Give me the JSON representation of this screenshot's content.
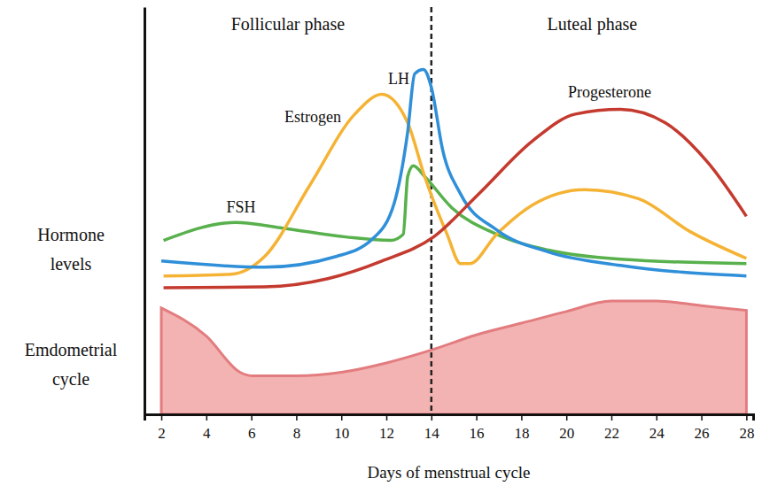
{
  "chart_data": [
    {
      "type": "line",
      "y_label": "Hormone levels",
      "phases": [
        {
          "label": "Follicular phase",
          "start": 1.25,
          "end": 14
        },
        {
          "label": "Luteal phase",
          "start": 14,
          "end": 28.3
        }
      ],
      "xlim": [
        1.25,
        28.3
      ],
      "ylim": [
        0,
        100
      ],
      "yticks": [],
      "tick_labels": false,
      "series": [
        {
          "name": "FSH",
          "color": "#58b14c",
          "x": [
            2.1,
            5.3,
            7.4,
            10.2,
            12.2,
            12.75,
            12.95,
            13.2,
            13.7,
            14.9,
            16.9,
            19.2,
            22.4,
            28
          ],
          "values": [
            20.6,
            26.7,
            24.8,
            21.8,
            20.6,
            22.7,
            42.4,
            46,
            42.4,
            31.8,
            22.7,
            17.3,
            14.2,
            12.7
          ]
        },
        {
          "name": "Estrogen",
          "color": "#f5b335",
          "x": [
            2.1,
            5.1,
            6.6,
            8.6,
            10.6,
            11.8,
            12.95,
            13.7,
            14.7,
            15.3,
            15.7,
            16.9,
            18.5,
            20.8,
            23.2,
            25.5,
            28
          ],
          "values": [
            8.5,
            9.1,
            15.2,
            39.4,
            63.6,
            70.3,
            60.6,
            42.4,
            22.7,
            12.7,
            12.7,
            22.7,
            32.7,
            37.9,
            34.8,
            23.6,
            14.5
          ]
        },
        {
          "name": "LH",
          "color": "#2f8fd8",
          "x": [
            2,
            6.6,
            9.8,
            11.4,
            12.35,
            12.95,
            13.26,
            13.65,
            14.0,
            14.5,
            15.3,
            16.9,
            19.2,
            22.4,
            28
          ],
          "values": [
            13.6,
            11.5,
            15.2,
            21.2,
            33.3,
            57.6,
            77.3,
            78.8,
            72.7,
            51.5,
            36.4,
            24.2,
            16.7,
            12.1,
            8.5
          ]
        },
        {
          "name": "Progesterone",
          "color": "#c43a2f",
          "x": [
            2.1,
            6.6,
            9.4,
            11.8,
            14.1,
            16.1,
            18.5,
            20.4,
            22.4,
            24.4,
            26.3,
            28
          ],
          "values": [
            4.5,
            4.8,
            7.6,
            13.6,
            21.8,
            36.4,
            54.5,
            63.6,
            65.2,
            60.6,
            47,
            28.8
          ]
        }
      ]
    },
    {
      "type": "area",
      "y_label": "Emdometrial cycle",
      "x_label": "Days of menstrual cycle",
      "xlim": [
        1.25,
        28.3
      ],
      "ylim": [
        0,
        10
      ],
      "xticks": [
        2,
        4,
        6,
        8,
        10,
        12,
        14,
        16,
        18,
        20,
        22,
        24,
        26,
        28
      ],
      "yticks": [],
      "tick_labels": "x",
      "color": "#f4b3b3",
      "x": [
        2,
        4,
        5.5,
        6,
        8,
        10,
        12,
        14,
        16,
        18,
        20,
        22,
        24,
        26,
        28
      ],
      "values": [
        9.1,
        6.7,
        3.6,
        3.3,
        3.3,
        3.6,
        4.4,
        5.5,
        6.8,
        7.8,
        8.8,
        9.7,
        9.7,
        9.3,
        8.9
      ]
    }
  ]
}
